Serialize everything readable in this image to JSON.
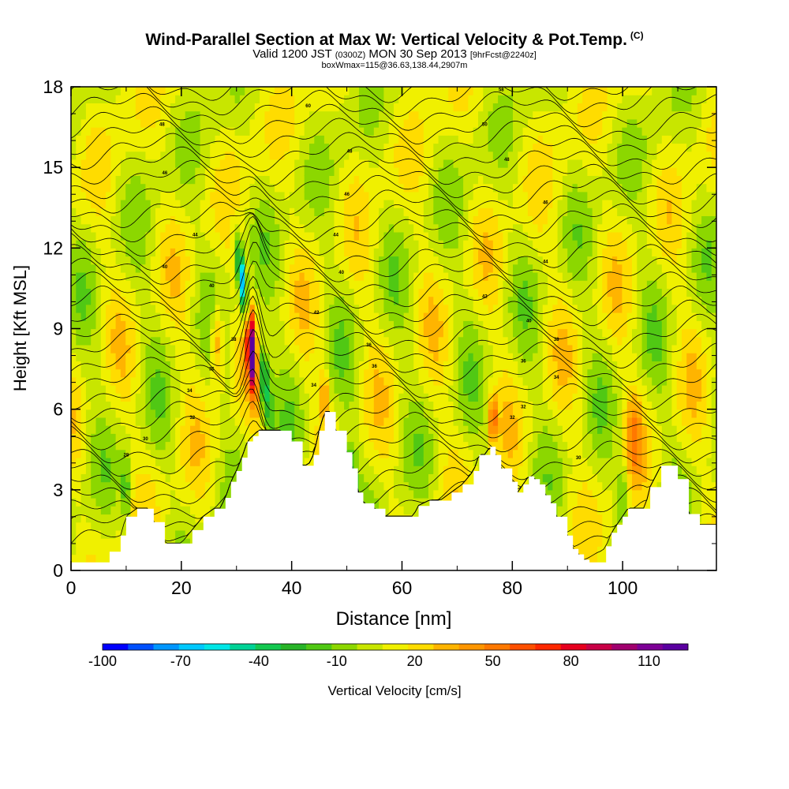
{
  "title_main": "Wind-Parallel Section at Max W: Vertical Velocity & Pot.Temp.",
  "title_copyright": "(C)",
  "subtitle_pre": "Valid 1200 JST",
  "subtitle_z": "(0300Z)",
  "subtitle_date": "MON 30 Sep 2013",
  "subtitle_fcst": "[9hrFcst@2240z]",
  "subtitle2": "boxWmax=115@36.63,138.44,2907m",
  "chart_data": {
    "type": "heatmap",
    "xlabel": "Distance [nm]",
    "ylabel": "Height [Kft MSL]",
    "xlim": [
      0,
      117
    ],
    "ylim": [
      0,
      18
    ],
    "x_ticks": [
      0,
      20,
      40,
      60,
      80,
      100
    ],
    "x_tick_labels": [
      "0",
      "20",
      "40",
      "60",
      "80",
      "100"
    ],
    "y_ticks": [
      0,
      3,
      6,
      9,
      12,
      15,
      18
    ],
    "y_tick_labels": [
      "0",
      "3",
      "6",
      "9",
      "12",
      "15",
      "18"
    ],
    "colorbar": {
      "label": "Vertical Velocity [cm/s]",
      "min": -100,
      "max": 125,
      "tick_values": [
        -100,
        -70,
        -40,
        -10,
        20,
        50,
        80,
        110
      ],
      "tick_labels": [
        "-100",
        "-70",
        "-40",
        "-10",
        "20",
        "50",
        "80",
        "110"
      ],
      "colors": [
        "#0000ff",
        "#0050ff",
        "#0096ff",
        "#00c8ff",
        "#00e6e6",
        "#00d296",
        "#14c850",
        "#28b428",
        "#50c814",
        "#8cd700",
        "#c8e600",
        "#f0f000",
        "#ffdc00",
        "#ffb400",
        "#ff9600",
        "#ff7800",
        "#ff5000",
        "#ff2800",
        "#e6001e",
        "#c80046",
        "#a0006e",
        "#7d0096",
        "#5a00a0"
      ]
    },
    "terrain_profile": {
      "x": [
        0,
        4,
        7,
        9,
        10,
        12,
        14,
        15,
        17,
        20,
        22,
        24,
        26,
        27,
        28,
        29,
        30,
        31,
        32,
        33,
        34,
        35,
        36,
        38,
        40,
        42,
        43,
        44,
        45,
        46,
        47,
        48,
        50,
        51,
        52,
        53,
        55,
        57,
        60,
        62,
        63,
        65,
        67,
        69,
        71,
        73,
        74,
        75,
        76,
        77,
        78,
        80,
        81,
        82,
        83,
        84,
        85,
        86,
        87,
        88,
        90,
        91,
        92,
        93,
        94,
        95,
        97,
        98,
        99,
        100,
        101,
        102,
        104,
        105,
        107,
        110,
        112,
        114,
        117
      ],
      "y": [
        0.3,
        0.3,
        0.7,
        1.3,
        2.0,
        2.3,
        2.3,
        1.8,
        1.0,
        1.0,
        1.5,
        2.0,
        2.3,
        2.3,
        2.7,
        3.3,
        3.7,
        4.2,
        4.8,
        5.0,
        5.2,
        5.2,
        5.2,
        5.2,
        4.8,
        3.9,
        3.9,
        4.3,
        5.2,
        5.9,
        5.9,
        5.2,
        4.4,
        3.8,
        2.9,
        2.5,
        2.3,
        2.0,
        2.0,
        2.0,
        2.4,
        2.6,
        2.6,
        2.9,
        3.2,
        3.7,
        4.3,
        4.3,
        4.6,
        4.3,
        3.8,
        3.3,
        2.9,
        3.2,
        3.5,
        3.4,
        3.2,
        2.8,
        2.5,
        2.0,
        1.3,
        0.8,
        0.6,
        0.4,
        0.3,
        0.3,
        0.9,
        1.4,
        1.7,
        2.0,
        2.3,
        2.3,
        2.3,
        3.1,
        3.9,
        3.4,
        2.1,
        1.7,
        1.7
      ]
    },
    "theta_contour_labels": [
      {
        "x": 10,
        "y": 4.3,
        "text": "28"
      },
      {
        "x": 13.5,
        "y": 4.9,
        "text": "30"
      },
      {
        "x": 22,
        "y": 5.7,
        "text": "32"
      },
      {
        "x": 21.5,
        "y": 6.7,
        "text": "34"
      },
      {
        "x": 25.5,
        "y": 7.5,
        "text": "36"
      },
      {
        "x": 29.5,
        "y": 8.6,
        "text": "38"
      },
      {
        "x": 25.5,
        "y": 10.6,
        "text": "40"
      },
      {
        "x": 17,
        "y": 11.3,
        "text": "40"
      },
      {
        "x": 22.5,
        "y": 12.5,
        "text": "44"
      },
      {
        "x": 17,
        "y": 14.8,
        "text": "46"
      },
      {
        "x": 16.5,
        "y": 16.6,
        "text": "48"
      },
      {
        "x": 44,
        "y": 6.9,
        "text": "34"
      },
      {
        "x": 44.5,
        "y": 9.6,
        "text": "42"
      },
      {
        "x": 49,
        "y": 11.1,
        "text": "40"
      },
      {
        "x": 48,
        "y": 12.5,
        "text": "44"
      },
      {
        "x": 50,
        "y": 14.0,
        "text": "46"
      },
      {
        "x": 50.5,
        "y": 15.6,
        "text": "48"
      },
      {
        "x": 54,
        "y": 8.4,
        "text": "36"
      },
      {
        "x": 55,
        "y": 7.6,
        "text": "36"
      },
      {
        "x": 43,
        "y": 17.3,
        "text": "60"
      },
      {
        "x": 75,
        "y": 10.2,
        "text": "42"
      },
      {
        "x": 80,
        "y": 5.7,
        "text": "32"
      },
      {
        "x": 82,
        "y": 6.1,
        "text": "32"
      },
      {
        "x": 82,
        "y": 7.8,
        "text": "36"
      },
      {
        "x": 83,
        "y": 9.3,
        "text": "40"
      },
      {
        "x": 88,
        "y": 8.6,
        "text": "38"
      },
      {
        "x": 88,
        "y": 7.2,
        "text": "34"
      },
      {
        "x": 86,
        "y": 13.7,
        "text": "46"
      },
      {
        "x": 86,
        "y": 11.5,
        "text": "44"
      },
      {
        "x": 79,
        "y": 15.3,
        "text": "48"
      },
      {
        "x": 75,
        "y": 16.6,
        "text": "50"
      },
      {
        "x": 78,
        "y": 17.9,
        "text": "58"
      },
      {
        "x": 92,
        "y": 4.2,
        "text": "30"
      }
    ]
  }
}
